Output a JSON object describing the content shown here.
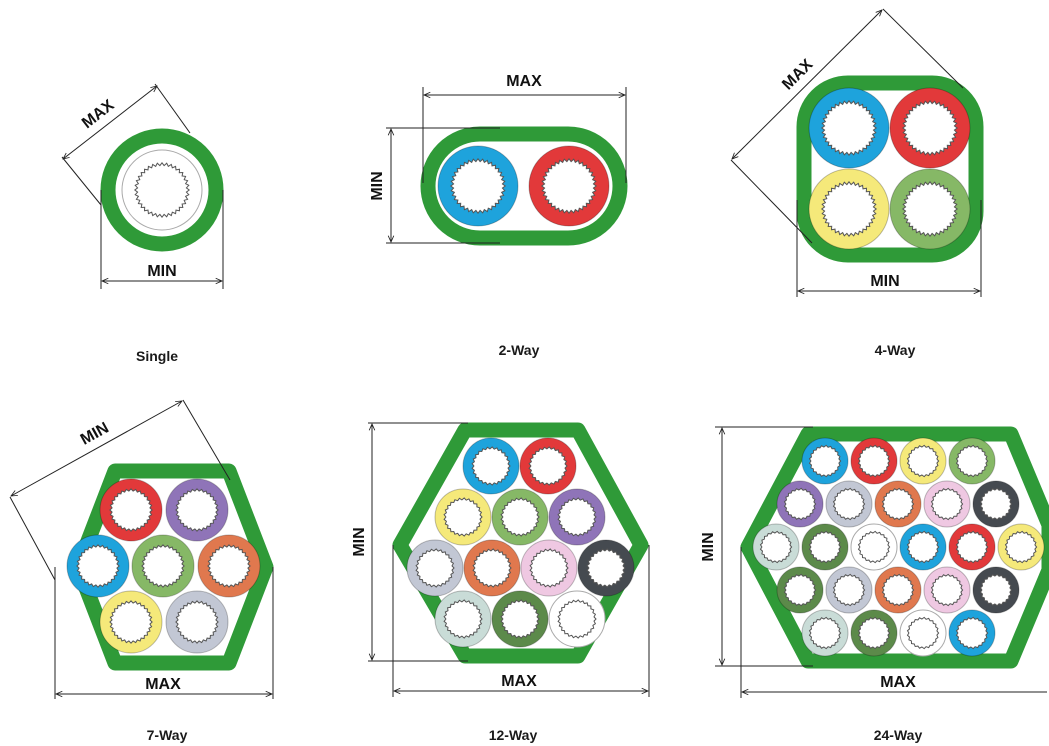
{
  "colors": {
    "jacket": "#2f9a38",
    "line": "#222222",
    "core": {
      "blue": "#1ea3dc",
      "red": "#e2393a",
      "yellow": "#f5e97a",
      "green": "#86b866",
      "purple": "#8f74b8",
      "orange": "#e0784e",
      "silver": "#c2c7d4",
      "pink": "#efc8e2",
      "black": "#454a50",
      "mint": "#c9dcd7",
      "darkgreen": "#5c8a4a",
      "white": "#ffffff"
    }
  },
  "dimension_labels": {
    "max": "MAX",
    "min": "MIN"
  },
  "diagrams": [
    {
      "label": "Single",
      "cores": [
        "white"
      ]
    },
    {
      "label": "2-Way",
      "cores": [
        "blue",
        "red"
      ]
    },
    {
      "label": "4-Way",
      "cores": [
        "blue",
        "red",
        "yellow",
        "green"
      ]
    },
    {
      "label": "7-Way",
      "cores": [
        "red",
        "purple",
        "blue",
        "green",
        "orange",
        "yellow",
        "silver"
      ]
    },
    {
      "label": "12-Way",
      "cores": [
        "blue",
        "red",
        "yellow",
        "green",
        "purple",
        "silver",
        "orange",
        "pink",
        "black",
        "mint",
        "darkgreen",
        "white"
      ]
    },
    {
      "label": "24-Way",
      "cores": [
        "blue",
        "red",
        "yellow",
        "green",
        "purple",
        "silver",
        "orange",
        "pink",
        "black",
        "mint",
        "darkgreen",
        "white",
        "blue",
        "red",
        "yellow",
        "darkgreen",
        "silver",
        "orange",
        "pink",
        "black",
        "mint",
        "darkgreen",
        "white",
        "blue"
      ]
    }
  ]
}
